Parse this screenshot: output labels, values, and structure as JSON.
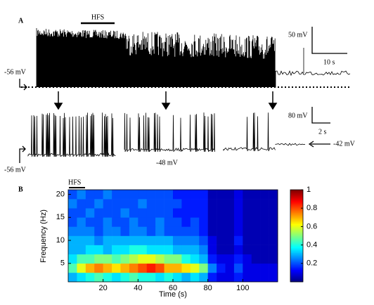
{
  "panel_a": {
    "label": "A",
    "hfs": "HFS",
    "scale_top_v": "50 mV",
    "scale_top_t": "10 s",
    "top_rest": "-56 mV",
    "scale_bottom_v": "80 mV",
    "scale_bottom_t": "2 s",
    "bottom_rest": "-56 mV",
    "mid_level": "-48 mV",
    "end_level": "-42 mV"
  },
  "chart_data": {
    "type": "heatmap",
    "panel_label": "B",
    "annotation": "HFS",
    "y_label": "Frequency (Hz)",
    "x_label": "Time (s)",
    "x": [
      2.5,
      7.5,
      12.5,
      17.5,
      22.5,
      27.5,
      32.5,
      37.5,
      42.5,
      47.5,
      52.5,
      57.5,
      62.5,
      67.5,
      72.5,
      77.5,
      82.5,
      87.5,
      92.5,
      97.5,
      102.5,
      107.5,
      112.5,
      117.5
    ],
    "y": [
      2,
      4,
      6,
      8,
      10,
      12,
      14,
      16,
      18,
      20
    ],
    "z": [
      [
        0.3,
        0.35,
        0.4,
        0.45,
        0.4,
        0.35,
        0.4,
        0.45,
        0.4,
        0.4,
        0.35,
        0.4,
        0.35,
        0.3,
        0.35,
        0.3,
        0.15,
        0.1,
        0.1,
        0.15,
        0.1,
        0.1,
        0.1,
        0.1
      ],
      [
        0.45,
        0.6,
        0.7,
        0.75,
        0.7,
        0.65,
        0.7,
        0.75,
        0.8,
        0.85,
        0.8,
        0.7,
        0.7,
        0.65,
        0.6,
        0.5,
        0.25,
        0.15,
        0.1,
        0.2,
        0.1,
        0.1,
        0.1,
        0.1
      ],
      [
        0.35,
        0.45,
        0.45,
        0.5,
        0.5,
        0.45,
        0.5,
        0.55,
        0.6,
        0.6,
        0.55,
        0.5,
        0.5,
        0.4,
        0.35,
        0.3,
        0.15,
        0.1,
        0.1,
        0.15,
        0.1,
        0.05,
        0.05,
        0.05
      ],
      [
        0.3,
        0.3,
        0.35,
        0.35,
        0.3,
        0.35,
        0.35,
        0.4,
        0.4,
        0.35,
        0.35,
        0.35,
        0.3,
        0.3,
        0.3,
        0.25,
        0.1,
        0.05,
        0.05,
        0.1,
        0.05,
        0.05,
        0.05,
        0.05
      ],
      [
        0.3,
        0.3,
        0.3,
        0.25,
        0.3,
        0.3,
        0.3,
        0.3,
        0.3,
        0.3,
        0.3,
        0.3,
        0.25,
        0.25,
        0.25,
        0.2,
        0.1,
        0.05,
        0.05,
        0.15,
        0.05,
        0.05,
        0.05,
        0.05
      ],
      [
        0.25,
        0.25,
        0.25,
        0.2,
        0.25,
        0.25,
        0.2,
        0.25,
        0.25,
        0.2,
        0.25,
        0.2,
        0.2,
        0.2,
        0.2,
        0.15,
        0.05,
        0.05,
        0.05,
        0.1,
        0.05,
        0.05,
        0.05,
        0.05
      ],
      [
        0.2,
        0.25,
        0.2,
        0.2,
        0.25,
        0.2,
        0.2,
        0.25,
        0.2,
        0.2,
        0.25,
        0.2,
        0.2,
        0.15,
        0.2,
        0.15,
        0.05,
        0.05,
        0.05,
        0.1,
        0.05,
        0.05,
        0.05,
        0.05
      ],
      [
        0.2,
        0.2,
        0.25,
        0.2,
        0.2,
        0.2,
        0.25,
        0.2,
        0.2,
        0.2,
        0.2,
        0.2,
        0.15,
        0.15,
        0.15,
        0.15,
        0.05,
        0.05,
        0.05,
        0.1,
        0.05,
        0.05,
        0.05,
        0.05
      ],
      [
        0.25,
        0.2,
        0.2,
        0.25,
        0.2,
        0.2,
        0.2,
        0.2,
        0.25,
        0.2,
        0.2,
        0.2,
        0.2,
        0.15,
        0.15,
        0.15,
        0.05,
        0.05,
        0.05,
        0.1,
        0.05,
        0.05,
        0.05,
        0.05
      ],
      [
        0.2,
        0.25,
        0.2,
        0.2,
        0.25,
        0.2,
        0.2,
        0.2,
        0.2,
        0.2,
        0.2,
        0.2,
        0.15,
        0.15,
        0.15,
        0.15,
        0.05,
        0.05,
        0.05,
        0.1,
        0.05,
        0.05,
        0.05,
        0.05
      ]
    ],
    "xlim": [
      0,
      120
    ],
    "ylim": [
      1,
      21
    ],
    "xticks": [
      20,
      40,
      60,
      80,
      100
    ],
    "yticks": [
      5,
      10,
      15,
      20
    ],
    "colorbar": {
      "lim": [
        0,
        1
      ],
      "ticks": [
        0.2,
        0.4,
        0.6,
        0.8,
        1
      ]
    },
    "colormap": "jet"
  }
}
